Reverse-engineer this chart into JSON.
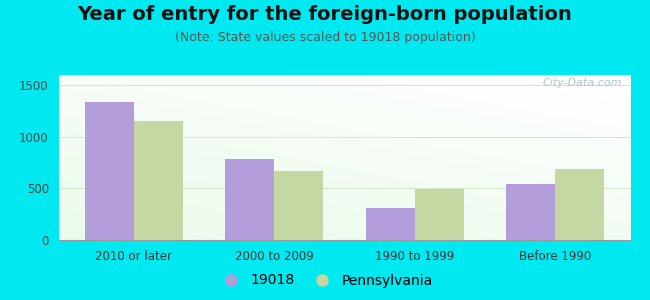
{
  "title": "Year of entry for the foreign-born population",
  "subtitle": "(Note: State values scaled to 19018 population)",
  "categories": [
    "2010 or later",
    "2000 to 2009",
    "1990 to 1999",
    "Before 1990"
  ],
  "values_19018": [
    1340,
    790,
    310,
    540
  ],
  "values_pennsylvania": [
    1150,
    670,
    490,
    690
  ],
  "color_19018": "#b39ddb",
  "color_pennsylvania": "#c5d8a4",
  "background_outer": "#00e8f0",
  "background_inner_tl": "#e8f5e9",
  "background_inner_br": "#f5fff5",
  "ylim": [
    0,
    1600
  ],
  "yticks": [
    0,
    500,
    1000,
    1500
  ],
  "bar_width": 0.35,
  "legend_label_19018": "19018",
  "legend_label_pennsylvania": "Pennsylvania",
  "title_fontsize": 14,
  "subtitle_fontsize": 9,
  "tick_fontsize": 8.5,
  "legend_fontsize": 10,
  "watermark_text": "City-Data.com"
}
